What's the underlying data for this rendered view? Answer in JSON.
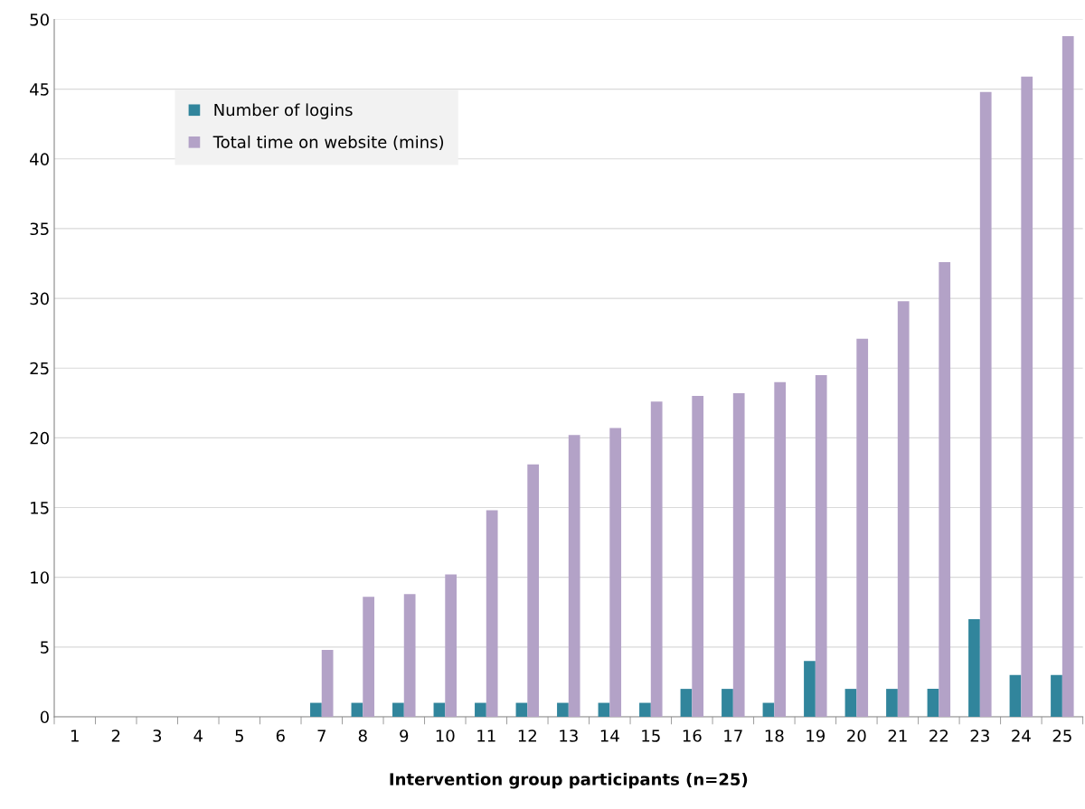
{
  "chart_data": {
    "type": "bar",
    "xlabel": "Intervention group participants (n=25)",
    "categories": [
      "1",
      "2",
      "3",
      "4",
      "5",
      "6",
      "7",
      "8",
      "9",
      "10",
      "11",
      "12",
      "13",
      "14",
      "15",
      "16",
      "17",
      "18",
      "19",
      "20",
      "21",
      "22",
      "23",
      "24",
      "25"
    ],
    "series": [
      {
        "name": "Number of logins",
        "color": "#31859c",
        "values": [
          0,
          0,
          0,
          0,
          0,
          0,
          1,
          1,
          1,
          1,
          1,
          1,
          1,
          1,
          1,
          2,
          2,
          1,
          4,
          2,
          2,
          2,
          7,
          3,
          3
        ]
      },
      {
        "name": "Total time on website (mins)",
        "color": "#b3a2c7",
        "values": [
          0,
          0,
          0,
          0,
          0,
          0,
          4.8,
          8.6,
          8.8,
          10.2,
          14.8,
          18.1,
          20.2,
          20.7,
          22.6,
          23.0,
          23.2,
          24.0,
          24.5,
          27.1,
          29.8,
          32.6,
          44.8,
          45.9,
          48.8
        ]
      }
    ],
    "ylim": [
      0,
      50
    ],
    "yticks": [
      0,
      5,
      10,
      15,
      20,
      25,
      30,
      35,
      40,
      45,
      50
    ],
    "grid": "y",
    "legend": "top left"
  }
}
